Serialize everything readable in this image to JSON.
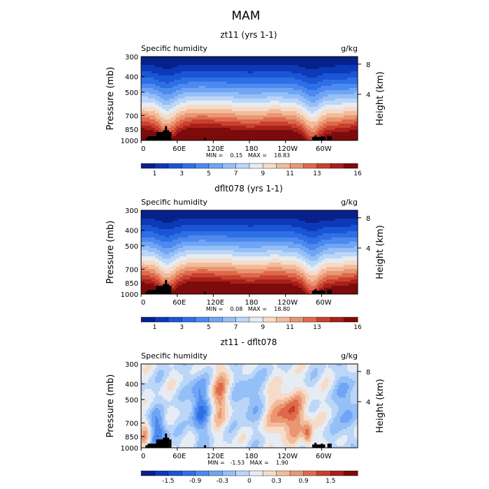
{
  "figure_title": "MAM",
  "chart_data": [
    {
      "type": "heatmap",
      "title": "zt11 (yrs 1-1)",
      "left_label": "Specific humidity",
      "right_label": "g/kg",
      "ylabel": "Pressure (mb)",
      "ylabel_right": "Height (km)",
      "yticks": [
        "300",
        "400",
        "500",
        "700",
        "850",
        "1000"
      ],
      "yticks_right": [
        "8",
        "4"
      ],
      "xticks": [
        "0",
        "60E",
        "120E",
        "180",
        "120W",
        "60W"
      ],
      "min_text": "MIN =    0.15   MAX =    18.83",
      "colorbar_labels": [
        "1",
        "3",
        "5",
        "7",
        "9",
        "11",
        "13",
        "16"
      ],
      "colormap": "blue-white-red",
      "field": "humidity"
    },
    {
      "type": "heatmap",
      "title": "dflt078 (yrs 1-1)",
      "left_label": "Specific humidity",
      "right_label": "g/kg",
      "ylabel": "Pressure (mb)",
      "ylabel_right": "Height (km)",
      "yticks": [
        "300",
        "400",
        "500",
        "700",
        "850",
        "1000"
      ],
      "yticks_right": [
        "8",
        "4"
      ],
      "xticks": [
        "0",
        "60E",
        "120E",
        "180",
        "120W",
        "60W"
      ],
      "min_text": "MIN =    0.08   MAX =    18.80",
      "colorbar_labels": [
        "1",
        "3",
        "5",
        "7",
        "9",
        "11",
        "13",
        "16"
      ],
      "colormap": "blue-white-red",
      "field": "humidity"
    },
    {
      "type": "heatmap",
      "title": "zt11 - dflt078",
      "left_label": "Specific humidity",
      "right_label": "g/kg",
      "ylabel": "Pressure (mb)",
      "ylabel_right": "Height (km)",
      "yticks": [
        "300",
        "400",
        "500",
        "700",
        "850",
        "1000"
      ],
      "yticks_right": [
        "8",
        "4"
      ],
      "xticks": [
        "0",
        "60E",
        "120E",
        "180",
        "120W",
        "60W"
      ],
      "min_text": "MIN =   -1.53   MAX =    1.90",
      "colorbar_labels": [
        "-1.5",
        "-0.9",
        "-0.3",
        "0",
        "0.3",
        "0.9",
        "1.5"
      ],
      "colormap": "blue-white-red",
      "field": "difference"
    }
  ]
}
